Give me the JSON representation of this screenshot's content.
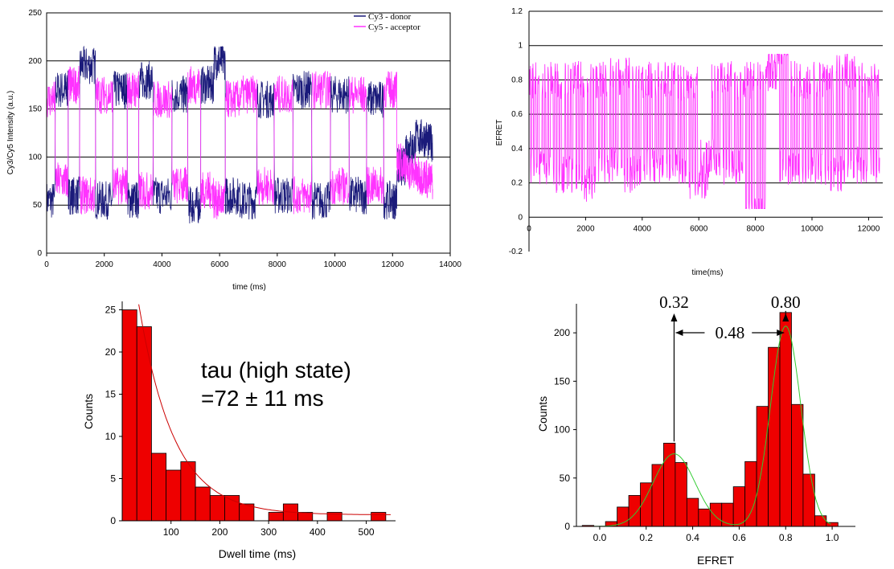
{
  "chart_data": [
    {
      "id": "intensity",
      "type": "line",
      "title": "",
      "xlabel": "time (ms)",
      "ylabel": "Cy3/Cy5 Intensity (a.u.)",
      "xlim": [
        0,
        14000
      ],
      "ylim": [
        0,
        250
      ],
      "xticks": [
        0,
        2000,
        4000,
        6000,
        8000,
        10000,
        12000,
        14000
      ],
      "yticks": [
        0,
        50,
        100,
        150,
        200,
        250
      ],
      "grid": true,
      "legend": "top-right",
      "series": [
        {
          "name": "Cy3 - donor",
          "color": "#1a1a7a",
          "x": [
            0,
            600,
            900,
            1400,
            2000,
            2600,
            3000,
            3400,
            4000,
            4700,
            5100,
            5600,
            6000,
            6400,
            7000,
            7600,
            8200,
            8900,
            9500,
            10200,
            10800,
            11400,
            12000,
            12300,
            12600,
            13000,
            13400
          ],
          "y": [
            55,
            170,
            60,
            195,
            55,
            170,
            55,
            180,
            60,
            165,
            50,
            175,
            200,
            60,
            55,
            160,
            60,
            170,
            55,
            165,
            60,
            160,
            55,
            90,
            110,
            120,
            115
          ]
        },
        {
          "name": "Cy5 - acceptor",
          "color": "#ff33ff",
          "x": [
            0,
            600,
            900,
            1400,
            2000,
            2600,
            3000,
            3400,
            4000,
            4700,
            5100,
            5600,
            6000,
            6400,
            7000,
            7600,
            8200,
            8900,
            9500,
            10200,
            10800,
            11400,
            12000,
            12300,
            12600,
            13000,
            13400
          ],
          "y": [
            160,
            75,
            175,
            60,
            165,
            70,
            170,
            65,
            160,
            70,
            175,
            65,
            55,
            160,
            165,
            70,
            165,
            60,
            170,
            70,
            165,
            70,
            170,
            95,
            85,
            80,
            75
          ]
        }
      ]
    },
    {
      "id": "efret_trace",
      "type": "line",
      "title": "",
      "xlabel": "time(ms)",
      "ylabel": "EFRET",
      "xlim": [
        0,
        12500
      ],
      "ylim": [
        -0.2,
        1.2
      ],
      "xticks": [
        0,
        2000,
        4000,
        6000,
        8000,
        10000,
        12000
      ],
      "yticks": [
        -0.2,
        0,
        0.2,
        0.4,
        0.6,
        0.8,
        1,
        1.2
      ],
      "grid": true,
      "series": [
        {
          "name": "",
          "color": "#ff33ff",
          "x": [
            0,
            400,
            800,
            1200,
            1600,
            2000,
            2400,
            2800,
            3200,
            3600,
            4000,
            4400,
            4800,
            5200,
            5600,
            6000,
            6400,
            6800,
            7200,
            7600,
            8000,
            8400,
            8800,
            9200,
            9600,
            10000,
            10400,
            10800,
            11200,
            11600,
            12000,
            12400
          ],
          "y": [
            0.8,
            0.3,
            0.8,
            0.25,
            0.8,
            0.2,
            0.8,
            0.3,
            0.82,
            0.25,
            0.8,
            0.3,
            0.8,
            0.3,
            0.78,
            0.2,
            0.35,
            0.8,
            0.3,
            0.8,
            0.0,
            0.8,
            1.0,
            0.3,
            0.8,
            0.3,
            0.8,
            0.25,
            0.85,
            0.3,
            0.8,
            0.3
          ]
        }
      ]
    },
    {
      "id": "dwell",
      "type": "bar",
      "title": "",
      "xlabel": "Dwell time (ms)",
      "ylabel": "Counts",
      "xlim": [
        0,
        560
      ],
      "ylim": [
        0,
        26
      ],
      "xticks": [
        100,
        200,
        300,
        400,
        500
      ],
      "yticks": [
        0,
        5,
        10,
        15,
        20,
        25
      ],
      "bin_width": 30,
      "bins": [
        15,
        45,
        75,
        105,
        135,
        165,
        195,
        225,
        255,
        285,
        315,
        345,
        375,
        405,
        435,
        465,
        495,
        525
      ],
      "values": [
        25,
        23,
        8,
        6,
        7,
        4,
        3,
        3,
        2,
        0,
        1,
        2,
        1,
        0,
        1,
        0,
        0,
        1
      ],
      "bar_color": "#ee0000",
      "fit": {
        "type": "exponential",
        "amplitude": 40,
        "tau": 72,
        "offset": 0.7,
        "color": "#cc0000"
      },
      "annotation": [
        "tau (high state)",
        "=72 ± 11 ms"
      ]
    },
    {
      "id": "efret_hist",
      "type": "bar",
      "title": "",
      "xlabel": "EFRET",
      "ylabel": "Counts",
      "xlim": [
        -0.1,
        1.1
      ],
      "ylim": [
        0,
        230
      ],
      "xticks": [
        0.0,
        0.2,
        0.4,
        0.6,
        0.8,
        1.0
      ],
      "xtick_labels": [
        "0.0",
        "0.2",
        "0.4",
        "0.6",
        "0.8",
        "1.0"
      ],
      "yticks": [
        0,
        50,
        100,
        150,
        200
      ],
      "bin_width": 0.05,
      "bins": [
        -0.05,
        0.0,
        0.05,
        0.1,
        0.15,
        0.2,
        0.25,
        0.3,
        0.35,
        0.4,
        0.45,
        0.5,
        0.55,
        0.6,
        0.65,
        0.7,
        0.75,
        0.8,
        0.85,
        0.9,
        0.95,
        1.0
      ],
      "values": [
        1,
        0,
        5,
        20,
        32,
        45,
        64,
        86,
        66,
        29,
        18,
        24,
        24,
        41,
        67,
        124,
        185,
        221,
        126,
        54,
        11,
        4
      ],
      "bar_color": "#ee0000",
      "fit": {
        "type": "double-gaussian",
        "peaks": [
          {
            "center": 0.32,
            "amplitude": 75,
            "sigma": 0.09
          },
          {
            "center": 0.8,
            "amplitude": 207,
            "sigma": 0.065
          }
        ],
        "color": "#33cc33"
      },
      "annotations": {
        "peak1": "0.32",
        "peak2": "0.80",
        "delta": "0.48"
      }
    }
  ]
}
